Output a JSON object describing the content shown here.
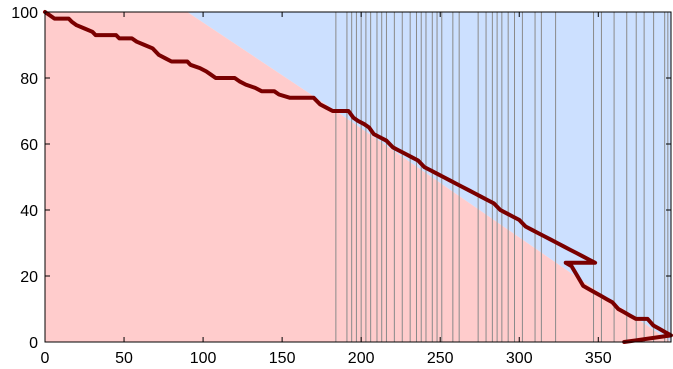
{
  "chart_data": {
    "type": "line",
    "title": "",
    "xlabel": "",
    "ylabel": "",
    "xlim": [
      0,
      396
    ],
    "ylim": [
      0,
      100
    ],
    "x_ticks": [
      0,
      50,
      100,
      150,
      200,
      250,
      300,
      350
    ],
    "y_ticks": [
      0,
      20,
      40,
      60,
      80,
      100
    ],
    "grid": false,
    "colors": {
      "red_region": "#ffcccc",
      "blue_region": "#cce0ff",
      "line": "#7a0000",
      "vlines": "#8a8a8a"
    },
    "regions": [
      {
        "color_key": "red_region",
        "boundary": [
          [
            0,
            100
          ],
          [
            90,
            100
          ],
          [
            184,
            70
          ],
          [
            396,
            0
          ]
        ]
      },
      {
        "color_key": "blue_region",
        "boundary_from": "red_region",
        "fill_to": "top"
      }
    ],
    "vertical_lines_x": [
      184,
      191,
      194,
      197,
      200,
      203,
      206,
      210,
      213,
      216,
      221,
      226,
      231,
      235,
      238,
      241,
      245,
      248,
      251,
      258,
      262,
      274,
      279,
      283,
      286,
      289,
      293,
      297,
      302,
      310,
      314,
      323,
      347,
      352,
      360,
      368,
      374,
      379,
      385,
      392,
      394
    ],
    "series": [
      {
        "points": [
          [
            0,
            100
          ],
          [
            3,
            99
          ],
          [
            6,
            98
          ],
          [
            15,
            98
          ],
          [
            17,
            97
          ],
          [
            20,
            96
          ],
          [
            25,
            95
          ],
          [
            30,
            94
          ],
          [
            32,
            93
          ],
          [
            45,
            93
          ],
          [
            47,
            92
          ],
          [
            55,
            92
          ],
          [
            58,
            91
          ],
          [
            63,
            90
          ],
          [
            68,
            89
          ],
          [
            72,
            87
          ],
          [
            76,
            86
          ],
          [
            80,
            85
          ],
          [
            90,
            85
          ],
          [
            92,
            84
          ],
          [
            98,
            83
          ],
          [
            102,
            82
          ],
          [
            105,
            81
          ],
          [
            108,
            80
          ],
          [
            120,
            80
          ],
          [
            123,
            79
          ],
          [
            127,
            78
          ],
          [
            133,
            77
          ],
          [
            137,
            76
          ],
          [
            145,
            76
          ],
          [
            148,
            75
          ],
          [
            155,
            74
          ],
          [
            170,
            74
          ],
          [
            174,
            72
          ],
          [
            178,
            71
          ],
          [
            182,
            70
          ],
          [
            192,
            70
          ],
          [
            195,
            68
          ],
          [
            198,
            67
          ],
          [
            202,
            66
          ],
          [
            205,
            65
          ],
          [
            208,
            63
          ],
          [
            212,
            62
          ],
          [
            216,
            61
          ],
          [
            220,
            59
          ],
          [
            224,
            58
          ],
          [
            228,
            57
          ],
          [
            232,
            56
          ],
          [
            236,
            55
          ],
          [
            240,
            53
          ],
          [
            244,
            52
          ],
          [
            248,
            51
          ],
          [
            252,
            50
          ],
          [
            256,
            49
          ],
          [
            260,
            48
          ],
          [
            264,
            47
          ],
          [
            268,
            46
          ],
          [
            272,
            45
          ],
          [
            276,
            44
          ],
          [
            280,
            43
          ],
          [
            284,
            42
          ],
          [
            288,
            40
          ],
          [
            292,
            39
          ],
          [
            296,
            38
          ],
          [
            300,
            37
          ],
          [
            304,
            35
          ],
          [
            308,
            34
          ],
          [
            312,
            33
          ],
          [
            316,
            32
          ],
          [
            320,
            31
          ],
          [
            324,
            30
          ],
          [
            328,
            29
          ],
          [
            332,
            28
          ],
          [
            336,
            27
          ],
          [
            340,
            26
          ],
          [
            344,
            25
          ],
          [
            348,
            24
          ],
          [
            356,
            24
          ],
          [
            360,
            23
          ],
          [
            364,
            20
          ],
          [
            368,
            17
          ],
          [
            372,
            16
          ],
          [
            376,
            15
          ],
          [
            380,
            14
          ],
          [
            384,
            13
          ],
          [
            388,
            12
          ],
          [
            392,
            10
          ],
          [
            396,
            9
          ],
          [
            400,
            8
          ],
          [
            404,
            7
          ],
          [
            412,
            7
          ],
          [
            416,
            5
          ],
          [
            420,
            4
          ],
          [
            424,
            3
          ],
          [
            428,
            2
          ],
          [
            396,
            0
          ]
        ]
      }
    ]
  }
}
